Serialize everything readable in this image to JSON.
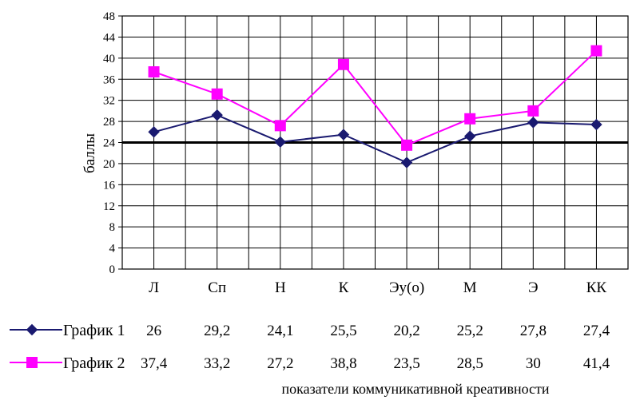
{
  "chart_data": {
    "type": "line",
    "title": "",
    "xlabel": "показатели коммуникативной креативности",
    "ylabel": "баллы",
    "ylim": [
      0,
      48
    ],
    "y_step": 4,
    "y_ticks": [
      "0",
      "4",
      "8",
      "12",
      "16",
      "20",
      "24",
      "28",
      "32",
      "36",
      "40",
      "44",
      "48"
    ],
    "grid": true,
    "reference_line": 24,
    "legend_placement": "bottom-left data table",
    "categories": [
      "Л",
      "Сп",
      "Н",
      "К",
      "Эу(о)",
      "М",
      "Э",
      "КК"
    ],
    "series": [
      {
        "name": "График 1",
        "color": "#1a1a70",
        "marker": "diamond",
        "values": [
          26,
          29.2,
          24.1,
          25.5,
          20.2,
          25.2,
          27.8,
          27.4
        ],
        "labels": [
          "26",
          "29,2",
          "24,1",
          "25,5",
          "20,2",
          "25,2",
          "27,8",
          "27,4"
        ]
      },
      {
        "name": "График 2",
        "color": "#ff00ff",
        "marker": "square",
        "values": [
          37.4,
          33.2,
          27.2,
          38.8,
          23.5,
          28.5,
          30,
          41.4
        ],
        "labels": [
          "37,4",
          "33,2",
          "27,2",
          "38,8",
          "23,5",
          "28,5",
          "30",
          "41,4"
        ]
      }
    ]
  }
}
